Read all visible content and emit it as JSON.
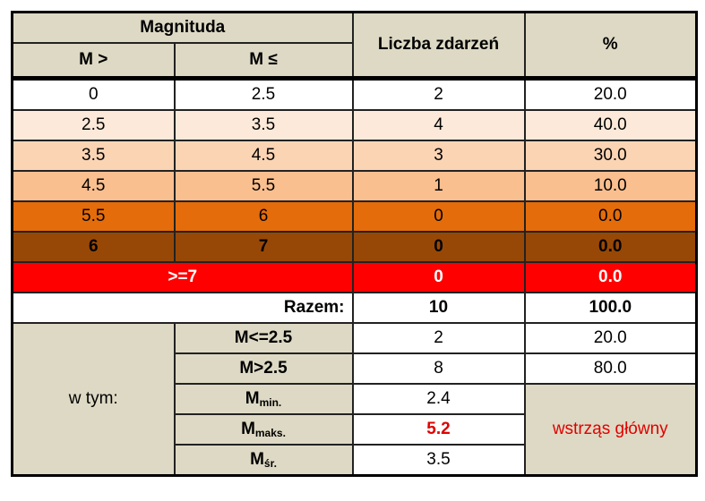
{
  "header": {
    "magnitude": "Magnituda",
    "from": "M >",
    "to": "M ≤",
    "count": "Liczba zdarzeń",
    "percent": "%"
  },
  "rows": [
    [
      "0",
      "2.5",
      "2",
      "20.0"
    ],
    [
      "2.5",
      "3.5",
      "4",
      "40.0"
    ],
    [
      "3.5",
      "4.5",
      "3",
      "30.0"
    ],
    [
      "4.5",
      "5.5",
      "1",
      "10.0"
    ],
    [
      "5.5",
      "6",
      "0",
      "0.0"
    ],
    [
      "6",
      "7",
      "0",
      "0.0"
    ]
  ],
  "over": [
    ">=7",
    "0",
    "0.0"
  ],
  "total": {
    "label": "Razem:",
    "count": "10",
    "percent": "100.0"
  },
  "breakdown": {
    "label": "w tym:",
    "rows": [
      {
        "label": "M<=2.5",
        "count": "2",
        "percent": "20.0"
      },
      {
        "label": "M>2.5",
        "count": "8",
        "percent": "80.0"
      }
    ],
    "stats": [
      {
        "symbol": "M",
        "sub": "min.",
        "value": "2.4"
      },
      {
        "symbol": "M",
        "sub": "maks.",
        "value": "5.2"
      },
      {
        "symbol": "M",
        "sub": "śr.",
        "value": "3.5"
      }
    ],
    "note": "wstrząs główny"
  }
}
